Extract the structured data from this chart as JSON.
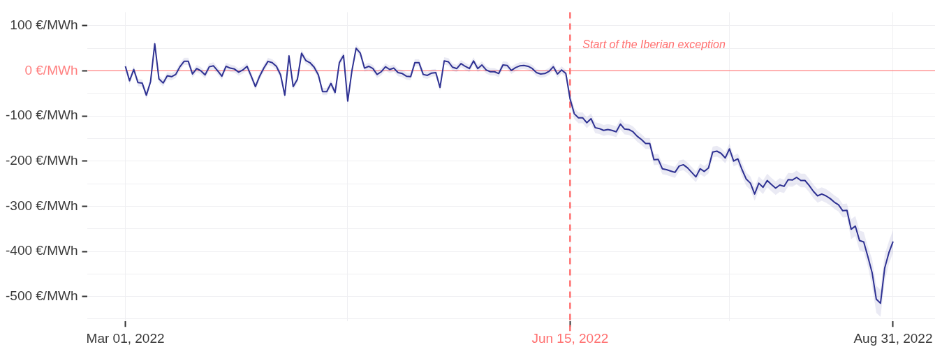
{
  "chart_data": {
    "type": "line",
    "x": [
      "2022-03-01",
      "2022-03-02",
      "2022-03-03",
      "2022-03-04",
      "2022-03-05",
      "2022-03-06",
      "2022-03-07",
      "2022-03-08",
      "2022-03-09",
      "2022-03-10",
      "2022-03-11",
      "2022-03-12",
      "2022-03-13",
      "2022-03-14",
      "2022-03-15",
      "2022-03-16",
      "2022-03-17",
      "2022-03-18",
      "2022-03-19",
      "2022-03-20",
      "2022-03-21",
      "2022-03-22",
      "2022-03-23",
      "2022-03-24",
      "2022-03-25",
      "2022-03-26",
      "2022-03-27",
      "2022-03-28",
      "2022-03-29",
      "2022-03-30",
      "2022-03-31",
      "2022-04-01",
      "2022-04-02",
      "2022-04-03",
      "2022-04-04",
      "2022-04-05",
      "2022-04-06",
      "2022-04-07",
      "2022-04-08",
      "2022-04-09",
      "2022-04-10",
      "2022-04-11",
      "2022-04-12",
      "2022-04-13",
      "2022-04-14",
      "2022-04-15",
      "2022-04-16",
      "2022-04-17",
      "2022-04-18",
      "2022-04-19",
      "2022-04-20",
      "2022-04-21",
      "2022-04-22",
      "2022-04-23",
      "2022-04-24",
      "2022-04-25",
      "2022-04-26",
      "2022-04-27",
      "2022-04-28",
      "2022-04-29",
      "2022-04-30",
      "2022-05-01",
      "2022-05-02",
      "2022-05-03",
      "2022-05-04",
      "2022-05-05",
      "2022-05-06",
      "2022-05-07",
      "2022-05-08",
      "2022-05-09",
      "2022-05-10",
      "2022-05-11",
      "2022-05-12",
      "2022-05-13",
      "2022-05-14",
      "2022-05-15",
      "2022-05-16",
      "2022-05-17",
      "2022-05-18",
      "2022-05-19",
      "2022-05-20",
      "2022-05-21",
      "2022-05-22",
      "2022-05-23",
      "2022-05-24",
      "2022-05-25",
      "2022-05-26",
      "2022-05-27",
      "2022-05-28",
      "2022-05-29",
      "2022-05-30",
      "2022-05-31",
      "2022-06-01",
      "2022-06-02",
      "2022-06-03",
      "2022-06-04",
      "2022-06-05",
      "2022-06-06",
      "2022-06-07",
      "2022-06-08",
      "2022-06-09",
      "2022-06-10",
      "2022-06-11",
      "2022-06-12",
      "2022-06-13",
      "2022-06-14",
      "2022-06-15",
      "2022-06-16",
      "2022-06-17",
      "2022-06-18",
      "2022-06-19",
      "2022-06-20",
      "2022-06-21",
      "2022-06-22",
      "2022-06-23",
      "2022-06-24",
      "2022-06-25",
      "2022-06-26",
      "2022-06-27",
      "2022-06-28",
      "2022-06-29",
      "2022-06-30",
      "2022-07-01",
      "2022-07-02",
      "2022-07-03",
      "2022-07-04",
      "2022-07-05",
      "2022-07-06",
      "2022-07-07",
      "2022-07-08",
      "2022-07-09",
      "2022-07-10",
      "2022-07-11",
      "2022-07-12",
      "2022-07-13",
      "2022-07-14",
      "2022-07-15",
      "2022-07-16",
      "2022-07-17",
      "2022-07-18",
      "2022-07-19",
      "2022-07-20",
      "2022-07-21",
      "2022-07-22",
      "2022-07-23",
      "2022-07-24",
      "2022-07-25",
      "2022-07-26",
      "2022-07-27",
      "2022-07-28",
      "2022-07-29",
      "2022-07-30",
      "2022-07-31",
      "2022-08-01",
      "2022-08-02",
      "2022-08-03",
      "2022-08-04",
      "2022-08-05",
      "2022-08-06",
      "2022-08-07",
      "2022-08-08",
      "2022-08-09",
      "2022-08-10",
      "2022-08-11",
      "2022-08-12",
      "2022-08-13",
      "2022-08-14",
      "2022-08-15",
      "2022-08-16",
      "2022-08-17",
      "2022-08-18",
      "2022-08-19",
      "2022-08-20",
      "2022-08-21",
      "2022-08-22",
      "2022-08-23",
      "2022-08-24",
      "2022-08-25",
      "2022-08-26",
      "2022-08-27",
      "2022-08-28",
      "2022-08-29",
      "2022-08-30",
      "2022-08-31"
    ],
    "series": [
      {
        "color": "#2e3192",
        "values": [
          10,
          -22,
          3,
          -26,
          -27,
          -54,
          -24,
          60,
          -18,
          -27,
          -11,
          -13,
          -8,
          9,
          21,
          21,
          -7,
          5,
          0,
          -9,
          9,
          11,
          0,
          -12,
          10,
          6,
          4,
          -3,
          2,
          10,
          -12,
          -35,
          -12,
          6,
          21,
          18,
          10,
          -9,
          -54,
          33,
          -35,
          -19,
          39,
          23,
          18,
          8,
          -9,
          -46,
          -46,
          -28,
          -48,
          18,
          34,
          -67,
          0,
          50,
          39,
          6,
          10,
          5,
          -8,
          -2,
          9,
          3,
          6,
          -4,
          -6,
          -12,
          -13,
          18,
          18,
          -8,
          -10,
          -5,
          -4,
          -37,
          22,
          20,
          8,
          5,
          16,
          10,
          5,
          22,
          5,
          13,
          2,
          -2,
          -2,
          -6,
          13,
          12,
          1,
          7,
          11,
          12,
          10,
          5,
          -4,
          -7,
          -6,
          -1,
          9,
          -7,
          2,
          -6,
          -62,
          -95,
          -104,
          -104,
          -115,
          -106,
          -126,
          -128,
          -132,
          -130,
          -132,
          -135,
          -118,
          -129,
          -130,
          -135,
          -145,
          -152,
          -161,
          -161,
          -197,
          -196,
          -217,
          -219,
          -222,
          -225,
          -211,
          -208,
          -215,
          -225,
          -235,
          -217,
          -223,
          -215,
          -180,
          -178,
          -183,
          -193,
          -173,
          -200,
          -195,
          -219,
          -240,
          -249,
          -273,
          -249,
          -258,
          -243,
          -252,
          -260,
          -253,
          -256,
          -241,
          -242,
          -236,
          -243,
          -243,
          -254,
          -267,
          -277,
          -273,
          -277,
          -283,
          -291,
          -297,
          -310,
          -309,
          -351,
          -344,
          -376,
          -379,
          -412,
          -447,
          -506,
          -515,
          -437,
          -403,
          -378
        ],
        "upper": [
          18,
          -14,
          11,
          -18,
          -19,
          -46,
          -16,
          68,
          -10,
          -19,
          -3,
          -5,
          0,
          17,
          29,
          29,
          1,
          13,
          8,
          -1,
          17,
          19,
          8,
          -4,
          18,
          14,
          12,
          5,
          10,
          18,
          -4,
          -27,
          -4,
          14,
          29,
          26,
          18,
          -1,
          -46,
          41,
          -27,
          -11,
          47,
          31,
          26,
          16,
          -1,
          -38,
          -38,
          -20,
          -40,
          26,
          42,
          -59,
          8,
          58,
          47,
          14,
          18,
          13,
          0,
          6,
          17,
          11,
          14,
          4,
          2,
          -4,
          -5,
          26,
          26,
          0,
          -2,
          3,
          4,
          -29,
          30,
          28,
          16,
          13,
          24,
          18,
          13,
          30,
          13,
          21,
          10,
          6,
          6,
          2,
          21,
          20,
          9,
          15,
          19,
          20,
          18,
          13,
          4,
          1,
          2,
          7,
          17,
          1,
          10,
          2,
          -50,
          -83,
          -92,
          -92,
          -103,
          -94,
          -114,
          -116,
          -120,
          -118,
          -120,
          -123,
          -106,
          -117,
          -118,
          -123,
          -133,
          -140,
          -149,
          -149,
          -185,
          -184,
          -205,
          -207,
          -210,
          -213,
          -199,
          -196,
          -203,
          -213,
          -223,
          -205,
          -211,
          -203,
          -168,
          -166,
          -171,
          -181,
          -161,
          -188,
          -183,
          -204,
          -225,
          -234,
          -258,
          -234,
          -243,
          -228,
          -237,
          -245,
          -238,
          -241,
          -226,
          -227,
          -221,
          -228,
          -228,
          -239,
          -252,
          -262,
          -258,
          -262,
          -268,
          -276,
          -282,
          -295,
          -294,
          -329,
          -322,
          -354,
          -357,
          -390,
          -417,
          -476,
          -485,
          -407,
          -378,
          -353
        ],
        "lower": [
          2,
          -30,
          -5,
          -34,
          -35,
          -62,
          -32,
          52,
          -26,
          -35,
          -19,
          -21,
          -16,
          1,
          13,
          13,
          -15,
          -3,
          -8,
          -17,
          1,
          3,
          -8,
          -20,
          2,
          -2,
          -4,
          -11,
          -6,
          2,
          -20,
          -43,
          -20,
          -2,
          13,
          10,
          2,
          -17,
          -62,
          25,
          -43,
          -27,
          31,
          15,
          10,
          0,
          -17,
          -54,
          -54,
          -36,
          -56,
          10,
          26,
          -75,
          -8,
          42,
          31,
          -2,
          2,
          -3,
          -16,
          -10,
          1,
          -5,
          -2,
          -12,
          -14,
          -20,
          -21,
          10,
          10,
          -16,
          -18,
          -13,
          -12,
          -45,
          14,
          12,
          0,
          -3,
          8,
          2,
          -3,
          14,
          -3,
          5,
          -6,
          -10,
          -10,
          -14,
          5,
          4,
          -7,
          -1,
          3,
          4,
          2,
          -3,
          -12,
          -15,
          -14,
          -9,
          1,
          -15,
          -6,
          -14,
          -74,
          -107,
          -116,
          -116,
          -127,
          -118,
          -138,
          -140,
          -144,
          -142,
          -144,
          -147,
          -130,
          -141,
          -142,
          -147,
          -157,
          -164,
          -173,
          -173,
          -209,
          -208,
          -229,
          -231,
          -234,
          -237,
          -223,
          -220,
          -227,
          -237,
          -247,
          -229,
          -235,
          -227,
          -192,
          -190,
          -195,
          -205,
          -185,
          -212,
          -207,
          -234,
          -255,
          -264,
          -288,
          -264,
          -273,
          -258,
          -267,
          -275,
          -268,
          -271,
          -256,
          -257,
          -251,
          -258,
          -258,
          -269,
          -282,
          -292,
          -288,
          -292,
          -298,
          -306,
          -312,
          -325,
          -324,
          -373,
          -366,
          -398,
          -401,
          -434,
          -477,
          -536,
          -545,
          -467,
          -428,
          -403
        ]
      }
    ],
    "xlim": [
      "2022-02-20",
      "2022-09-10"
    ],
    "xticks": [
      {
        "value": "2022-03-01",
        "label": "Mar 01, 2022"
      },
      {
        "value": "2022-04-23",
        "label": null
      },
      {
        "value": "2022-06-15",
        "label": "Jun 15, 2022"
      },
      {
        "value": "2022-07-23",
        "label": null
      },
      {
        "value": "2022-08-31",
        "label": "Aug 31, 2022"
      }
    ],
    "ylim": [
      -555,
      130
    ],
    "yticks": [
      {
        "value": 100,
        "label": "100 €/MWh"
      },
      {
        "value": 50,
        "label": null
      },
      {
        "value": 0,
        "label": "0 €/MWh"
      },
      {
        "value": -50,
        "label": null
      },
      {
        "value": -100,
        "label": "-100 €/MWh"
      },
      {
        "value": -150,
        "label": null
      },
      {
        "value": -200,
        "label": "-200 €/MWh"
      },
      {
        "value": -250,
        "label": null
      },
      {
        "value": -300,
        "label": "-300 €/MWh"
      },
      {
        "value": -350,
        "label": null
      },
      {
        "value": -400,
        "label": "-400 €/MWh"
      },
      {
        "value": -450,
        "label": null
      },
      {
        "value": -500,
        "label": "-500 €/MWh"
      },
      {
        "value": -550,
        "label": null
      }
    ],
    "ref_lines": [
      {
        "axis": "y",
        "value": 0,
        "color": "#ff8080",
        "line_style": "solid"
      },
      {
        "axis": "x",
        "value": "2022-06-15",
        "label": "Start of the Iberian exception",
        "color": "#ff7070",
        "line_style": "dashed"
      }
    ],
    "grid": true,
    "legend": false
  }
}
